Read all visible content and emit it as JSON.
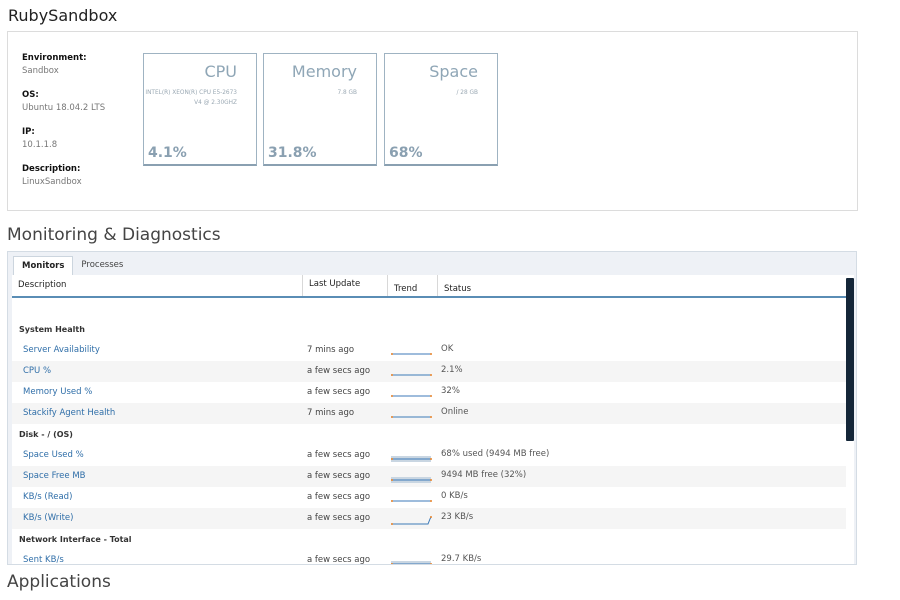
{
  "page_title": "RubySandbox",
  "summary": {
    "properties": [
      {
        "label": "Environment:",
        "value": "Sandbox"
      },
      {
        "label": "OS:",
        "value": "Ubuntu 18.04.2 LTS"
      },
      {
        "label": "IP:",
        "value": "10.1.1.8"
      },
      {
        "label": "Description:",
        "value": "LinuxSandbox"
      }
    ],
    "tiles": [
      {
        "title": "CPU",
        "subtitle": "INTEL(R) XEON(R) CPU E5-2673 V4 @ 2.30GHZ",
        "value": "4.1%"
      },
      {
        "title": "Memory",
        "subtitle": "7.8 GB",
        "value": "31.8%"
      },
      {
        "title": "Space",
        "subtitle": "/ 28 GB",
        "value": "68%"
      }
    ]
  },
  "monitoring": {
    "section_title": "Monitoring & Diagnostics",
    "tabs": [
      {
        "label": "Monitors",
        "active": true
      },
      {
        "label": "Processes",
        "active": false
      }
    ],
    "columns": {
      "description": "Description",
      "last_update": "Last Update",
      "trend": "Trend",
      "status": "Status"
    },
    "rows": [
      {
        "type": "group",
        "label": "System Health"
      },
      {
        "type": "item",
        "description": "Server Availability",
        "last_update": "7 mins ago",
        "status": "OK",
        "trend": "flat"
      },
      {
        "type": "item",
        "description": "CPU %",
        "last_update": "a few secs ago",
        "status": "2.1%",
        "trend": "flat"
      },
      {
        "type": "item",
        "description": "Memory Used %",
        "last_update": "a few secs ago",
        "status": "32%",
        "trend": "flat"
      },
      {
        "type": "item",
        "description": "Stackify Agent Health",
        "last_update": "7 mins ago",
        "status": "Online",
        "trend": "flat"
      },
      {
        "type": "group",
        "label": "Disk - / (OS)"
      },
      {
        "type": "item",
        "description": "Space Used %",
        "last_update": "a few secs ago",
        "status": "68% used (9494 MB free)",
        "trend": "area"
      },
      {
        "type": "item",
        "description": "Space Free MB",
        "last_update": "a few secs ago",
        "status": "9494 MB free (32%)",
        "trend": "area"
      },
      {
        "type": "item",
        "description": "KB/s (Read)",
        "last_update": "a few secs ago",
        "status": "0 KB/s",
        "trend": "flat"
      },
      {
        "type": "item",
        "description": "KB/s (Write)",
        "last_update": "a few secs ago",
        "status": "23 KB/s",
        "trend": "spike"
      },
      {
        "type": "group",
        "label": "Network Interface - Total"
      },
      {
        "type": "item",
        "description": "Sent KB/s",
        "last_update": "a few secs ago",
        "status": "29.7 KB/s",
        "trend": "area"
      }
    ]
  },
  "applications": {
    "section_title": "Applications"
  },
  "colors": {
    "link": "#2f6ea8",
    "tile_accent": "#8aa0b1",
    "header_rule": "#5a8db5",
    "scrollbar": "#142638",
    "trend_line": "#3d7ab8",
    "trend_dot": "#e8842a"
  }
}
